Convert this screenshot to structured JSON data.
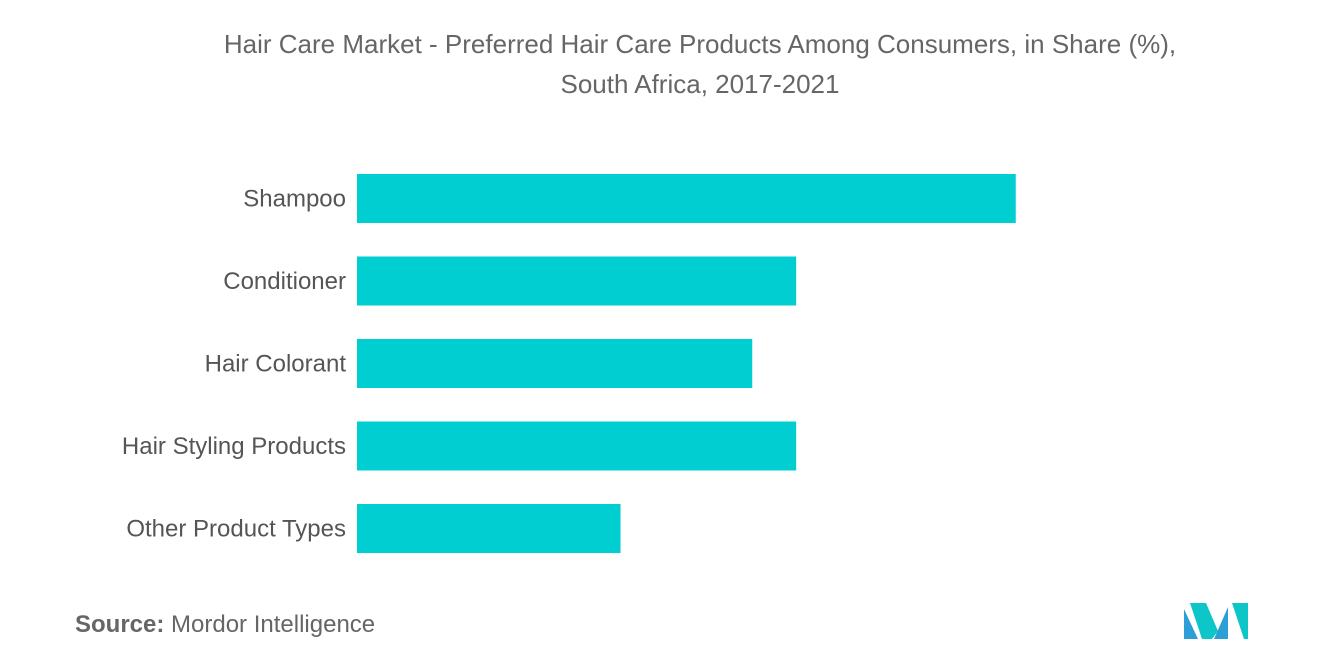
{
  "chart_data": {
    "type": "bar",
    "orientation": "horizontal",
    "title": "Hair Care Market - Preferred Hair Care Products Among Consumers, in Share (%),",
    "subtitle": "South Africa, 2017-2021",
    "categories": [
      "Shampoo",
      "Conditioner",
      "Hair Colorant",
      "Hair Styling Products",
      "Other Product Types"
    ],
    "values": [
      30,
      20,
      18,
      20,
      12
    ],
    "xlim": [
      0,
      43.4
    ],
    "grid": false,
    "legend": "none",
    "bar_color": "#00ced1"
  },
  "source": {
    "label": "Source:",
    "text": "Mordor Intelligence"
  },
  "logo": {
    "icon": "mordor-intelligence-logo-icon",
    "color": "#2e9fd6",
    "accent": "#0ec5c8"
  }
}
